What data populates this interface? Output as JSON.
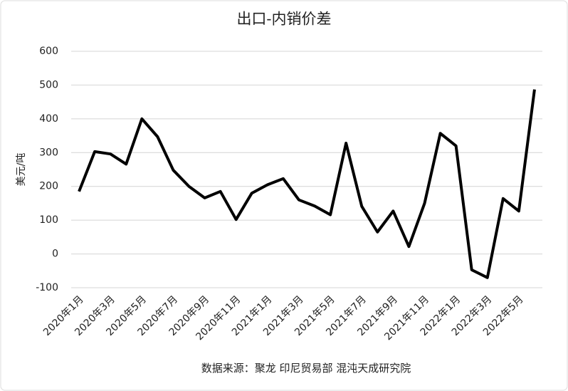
{
  "chart_data": {
    "type": "line",
    "title": "出口-内销价差",
    "y_label": "美元/吨",
    "source": "数据来源：聚龙 印尼贸易部 混沌天成研究院",
    "categories": [
      "2020年1月",
      null,
      "2020年3月",
      null,
      "2020年5月",
      null,
      "2020年7月",
      null,
      "2020年9月",
      null,
      "2020年11月",
      null,
      "2021年1月",
      null,
      "2021年3月",
      null,
      "2021年5月",
      null,
      "2021年7月",
      null,
      "2021年9月",
      null,
      "2021年11月",
      null,
      "2022年1月",
      null,
      "2022年3月",
      null,
      "2022年5月",
      null
    ],
    "values": [
      185,
      303,
      296,
      266,
      400,
      347,
      248,
      200,
      166,
      185,
      102,
      180,
      205,
      223,
      160,
      142,
      116,
      328,
      141,
      65,
      127,
      22,
      150,
      357,
      320,
      -47,
      -70,
      164,
      127,
      487
    ],
    "color": "#000000",
    "ylim": [
      -100,
      600
    ],
    "yticks": [
      -100,
      0,
      100,
      200,
      300,
      400,
      500,
      600
    ],
    "grid": true
  }
}
